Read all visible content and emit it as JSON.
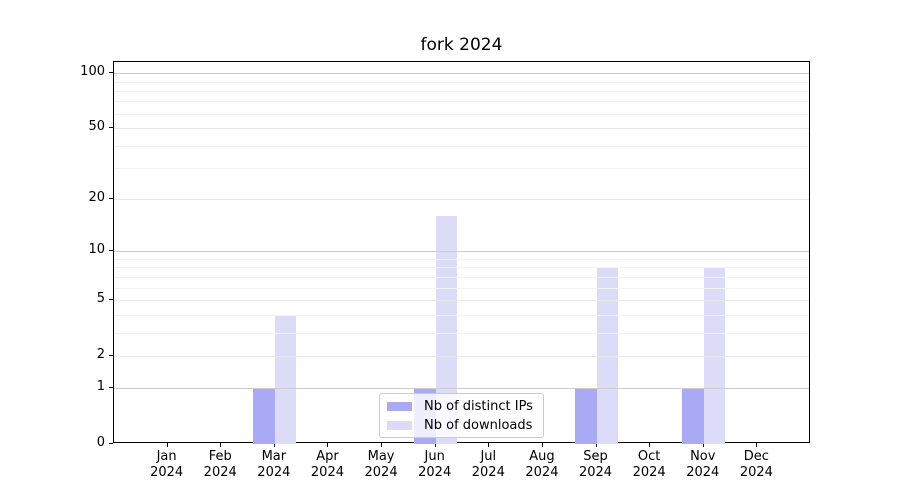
{
  "chart_data": {
    "type": "bar",
    "title": "fork 2024",
    "x_categories": [
      "Jan",
      "Feb",
      "Mar",
      "Apr",
      "May",
      "Jun",
      "Jul",
      "Aug",
      "Sep",
      "Oct",
      "Nov",
      "Dec"
    ],
    "x_year": "2024",
    "series": [
      {
        "name": "Nb of distinct IPs",
        "color": "#a9a9f6",
        "values": [
          0,
          0,
          1,
          0,
          0,
          1,
          0,
          0,
          1,
          0,
          1,
          0
        ]
      },
      {
        "name": "Nb of downloads",
        "color": "#dcdcf9",
        "values": [
          0,
          0,
          4,
          0,
          0,
          16,
          0,
          0,
          8,
          0,
          8,
          0
        ]
      }
    ],
    "yscale": "log1p",
    "ylim": [
      0,
      115
    ],
    "yticks": [
      0,
      1,
      2,
      5,
      10,
      20,
      50,
      100
    ],
    "grid": {
      "major_values": [
        1,
        10,
        100
      ],
      "mid_values": [
        2,
        5,
        20,
        50
      ],
      "minor_values": [
        3,
        4,
        6,
        7,
        8,
        9,
        30,
        40,
        60,
        70,
        80,
        90
      ],
      "major_color": "#cccccc",
      "mid_color": "#e8e8e8",
      "minor_color": "#f2f2f2"
    },
    "legend_position": "lower center"
  }
}
